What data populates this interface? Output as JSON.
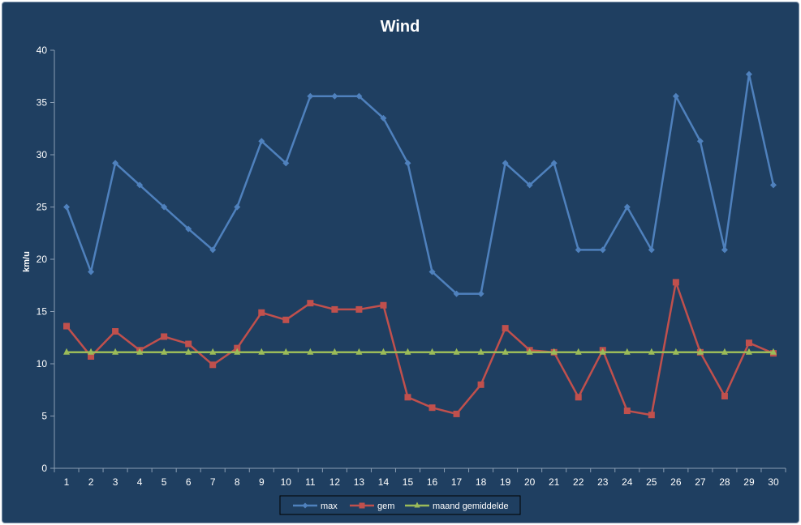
{
  "chart_data": {
    "type": "line",
    "title": "Wind",
    "xlabel": "",
    "ylabel": "km/u",
    "ylim": [
      0,
      40
    ],
    "yticks": [
      0,
      5,
      10,
      15,
      20,
      25,
      30,
      35,
      40
    ],
    "grid": false,
    "legend_position": "bottom",
    "background": "#1f3f61",
    "categories": [
      "1",
      "2",
      "3",
      "4",
      "5",
      "6",
      "7",
      "8",
      "9",
      "10",
      "11",
      "12",
      "13",
      "14",
      "15",
      "16",
      "17",
      "18",
      "19",
      "20",
      "21",
      "22",
      "23",
      "24",
      "25",
      "26",
      "27",
      "28",
      "29",
      "30"
    ],
    "series": [
      {
        "name": "max",
        "color": "#4f81bd",
        "marker": "diamond",
        "values": [
          25.0,
          18.8,
          29.2,
          27.1,
          25.0,
          22.9,
          20.9,
          25.0,
          31.3,
          29.2,
          35.6,
          35.6,
          35.6,
          33.5,
          29.2,
          18.8,
          16.7,
          16.7,
          29.2,
          27.1,
          29.2,
          20.9,
          20.9,
          25.0,
          20.9,
          35.6,
          31.3,
          20.9,
          37.7,
          27.1
        ]
      },
      {
        "name": "gem",
        "color": "#c0504d",
        "marker": "square",
        "values": [
          13.6,
          10.7,
          13.1,
          11.3,
          12.6,
          11.9,
          9.9,
          11.5,
          14.9,
          14.2,
          15.8,
          15.2,
          15.2,
          15.6,
          6.8,
          5.8,
          5.2,
          8.0,
          13.4,
          11.3,
          11.1,
          6.8,
          11.3,
          5.5,
          5.1,
          17.8,
          11.1,
          6.9,
          12.0,
          11.0
        ]
      },
      {
        "name": "maand gemiddelde",
        "color": "#9bbb59",
        "marker": "triangle",
        "values": [
          11.1,
          11.1,
          11.1,
          11.1,
          11.1,
          11.1,
          11.1,
          11.1,
          11.1,
          11.1,
          11.1,
          11.1,
          11.1,
          11.1,
          11.1,
          11.1,
          11.1,
          11.1,
          11.1,
          11.1,
          11.1,
          11.1,
          11.1,
          11.1,
          11.1,
          11.1,
          11.1,
          11.1,
          11.1,
          11.1
        ]
      }
    ]
  }
}
